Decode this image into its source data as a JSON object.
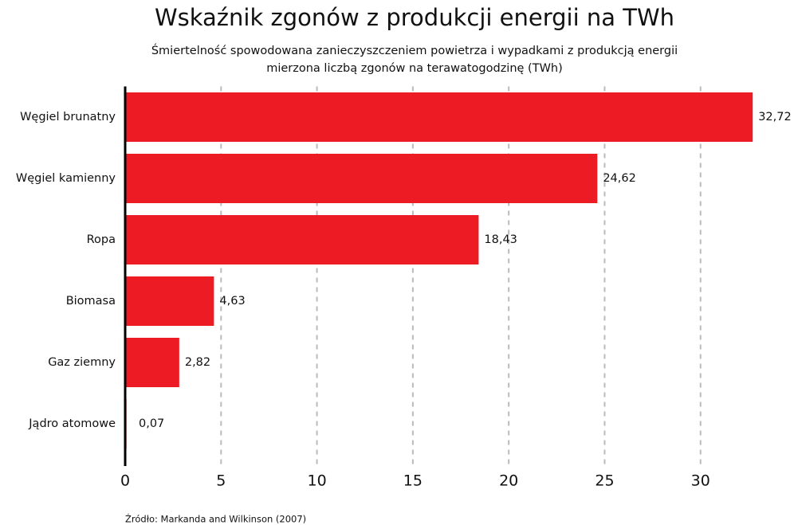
{
  "chart_data": {
    "type": "barh",
    "title": "Wskaźnik zgonów z produkcji energii na TWh",
    "subtitle": [
      "Śmiertelność spowodowana zanieczyszczeniem powietrza i wypadkami z produkcją energii",
      "mierzona liczbą zgonów na terawatogodzinę (TWh)"
    ],
    "categories": [
      "Węgiel brunatny",
      "Węgiel kamienny",
      "Ropa",
      "Biomasa",
      "Gaz ziemny",
      "Jądro atomowe"
    ],
    "values": [
      32.72,
      24.62,
      18.43,
      4.63,
      2.82,
      0.07
    ],
    "value_labels": [
      "32,72",
      "24,62",
      "18,43",
      "4,63",
      "2,82",
      "0,07"
    ],
    "color": "#ed1c24",
    "xlim": [
      0,
      34
    ],
    "xticks": [
      0,
      5,
      10,
      15,
      20,
      25,
      30
    ],
    "grid": true,
    "source": "Źródło: Markanda and Wilkinson (2007)"
  }
}
